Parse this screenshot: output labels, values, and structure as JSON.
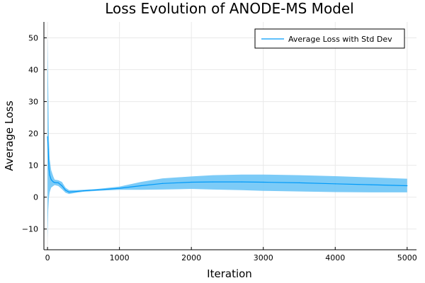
{
  "chart_data": {
    "type": "line",
    "title": "Loss Evolution of ANODE-MS Model",
    "xlabel": "Iteration",
    "ylabel": "Average Loss",
    "xlim": [
      -50,
      5130
    ],
    "ylim": [
      -16.5,
      55
    ],
    "xticks": [
      0,
      1000,
      2000,
      3000,
      4000,
      5000
    ],
    "yticks": [
      -10,
      0,
      10,
      20,
      30,
      40,
      50
    ],
    "grid": true,
    "legend_position": "top-right",
    "series": [
      {
        "name": "Average Loss with Std Dev",
        "color": "#009af9",
        "band_color": "#6ec5f6",
        "x": [
          0,
          10,
          20,
          30,
          50,
          80,
          100,
          150,
          200,
          250,
          300,
          400,
          500,
          700,
          1000,
          1300,
          1600,
          2000,
          2300,
          2700,
          3000,
          3500,
          4000,
          4500,
          5000
        ],
        "y": [
          19,
          15,
          9,
          7,
          5.5,
          4.8,
          4.6,
          4.5,
          3.6,
          2.2,
          1.6,
          1.8,
          2.0,
          2.3,
          2.8,
          3.6,
          4.3,
          4.7,
          4.8,
          4.8,
          4.7,
          4.5,
          4.2,
          3.9,
          3.6
        ],
        "lower": [
          -13,
          -4,
          0,
          1.5,
          3,
          3.5,
          3.8,
          3.5,
          2.5,
          1.4,
          1.0,
          1.4,
          1.7,
          2.0,
          2.3,
          2.3,
          2.4,
          2.6,
          2.4,
          2.2,
          2.0,
          1.8,
          1.6,
          1.5,
          1.5
        ],
        "upper": [
          50,
          34,
          18,
          12,
          8.5,
          6.5,
          5.5,
          5.3,
          4.8,
          3.0,
          2.2,
          2.2,
          2.3,
          2.6,
          3.3,
          4.8,
          5.9,
          6.5,
          6.9,
          7.1,
          7.1,
          6.9,
          6.6,
          6.2,
          5.8
        ]
      }
    ]
  }
}
